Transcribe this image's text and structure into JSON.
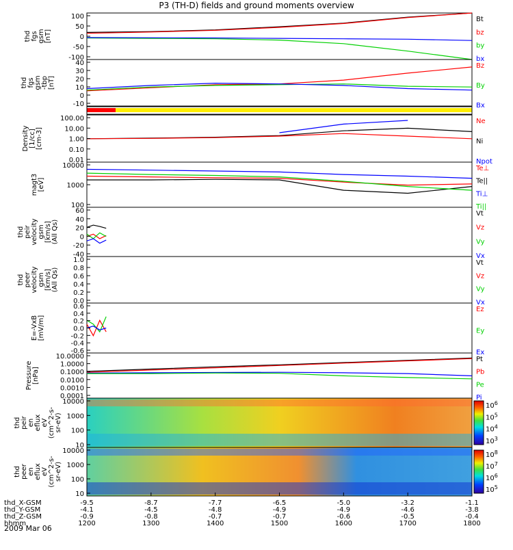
{
  "title": "P3 (TH-D) fields and ground moments overview",
  "date_label": "2009 Mar 06",
  "colors": {
    "black": "#000000",
    "red": "#ff0000",
    "green": "#00d000",
    "blue": "#0000ff"
  },
  "chart_data": [
    {
      "type": "line",
      "id": "fgs_gsm",
      "ylabel": [
        "thd",
        "fgs",
        "gsm",
        "[nT]"
      ],
      "ylim": [
        -100,
        100
      ],
      "yticks": [
        "100",
        "50",
        "0",
        "-50",
        "-100"
      ],
      "legend": [
        {
          "name": "Bt",
          "color": "black"
        },
        {
          "name": "bz",
          "color": "red"
        },
        {
          "name": "by",
          "color": "green"
        },
        {
          "name": "bx",
          "color": "blue"
        }
      ],
      "x": [
        1200,
        1300,
        1400,
        1500,
        1600,
        1700,
        1800
      ],
      "series": [
        {
          "name": "Bt",
          "color": "black",
          "values": [
            18,
            22,
            30,
            45,
            62,
            90,
            130
          ]
        },
        {
          "name": "bz",
          "color": "red",
          "values": [
            14,
            20,
            28,
            42,
            60,
            88,
            125
          ]
        },
        {
          "name": "by",
          "color": "green",
          "values": [
            -8,
            -10,
            -12,
            -18,
            -35,
            -70,
            -110
          ]
        },
        {
          "name": "bx",
          "color": "blue",
          "values": [
            -6,
            -7,
            -8,
            -10,
            -12,
            -14,
            -20
          ]
        }
      ]
    },
    {
      "type": "line",
      "id": "fgs_gse_tbp",
      "ylabel": [
        "thd",
        "fgs",
        "gsm",
        "-tbp",
        "[nT]"
      ],
      "ylim": [
        -15,
        40
      ],
      "yticks": [
        "40",
        "30",
        "20",
        "10",
        "0",
        "-10"
      ],
      "legend": [
        {
          "name": "Bz",
          "color": "red"
        },
        {
          "name": "By",
          "color": "green"
        },
        {
          "name": "Bx",
          "color": "blue"
        }
      ],
      "x": [
        1200,
        1300,
        1400,
        1500,
        1600,
        1700,
        1800
      ],
      "series": [
        {
          "name": "Bz",
          "color": "red",
          "values": [
            2,
            6,
            10,
            11,
            16,
            25,
            33
          ]
        },
        {
          "name": "By",
          "color": "green",
          "values": [
            3,
            7,
            9,
            10,
            11,
            8,
            7
          ]
        },
        {
          "name": "Bx",
          "color": "blue",
          "values": [
            5,
            9,
            12,
            11,
            9,
            5,
            3
          ]
        }
      ]
    },
    {
      "type": "bar",
      "id": "status_bar",
      "ylabel": []
    },
    {
      "type": "line",
      "id": "density",
      "log": true,
      "ylabel": [
        "Density",
        "[1/cc]",
        "[cm-3]"
      ],
      "ylim": [
        0.001,
        100
      ],
      "yticks": [
        "100.00",
        "10.00",
        "1.00",
        "0.10",
        "0.01"
      ],
      "legend": [
        {
          "name": "Ne",
          "color": "red"
        },
        {
          "name": "Ni",
          "color": "black"
        },
        {
          "name": "Npot",
          "color": "blue"
        }
      ],
      "x": [
        1200,
        1300,
        1400,
        1500,
        1600,
        1700,
        1800
      ],
      "series": [
        {
          "name": "Ni",
          "color": "black",
          "values": [
            0.3,
            0.35,
            0.45,
            0.7,
            2.5,
            5,
            2
          ]
        },
        {
          "name": "Ne",
          "color": "red",
          "values": [
            0.3,
            0.33,
            0.4,
            0.6,
            1.2,
            0.6,
            0.3
          ]
        },
        {
          "name": "Npot",
          "color": "blue",
          "values": [
            null,
            null,
            null,
            1.5,
            15,
            40,
            null
          ]
        }
      ]
    },
    {
      "type": "line",
      "id": "temperature",
      "log": true,
      "ylabel": [
        "magt3",
        "[eV]"
      ],
      "ylim": [
        40,
        10000
      ],
      "yticks": [
        "10000",
        "1000",
        "100"
      ],
      "legend": [
        {
          "name": "Te⊥",
          "color": "red"
        },
        {
          "name": "Te||",
          "color": "black"
        },
        {
          "name": "Ti⊥",
          "color": "blue"
        },
        {
          "name": "Ti||",
          "color": "green"
        }
      ],
      "x": [
        1200,
        1300,
        1400,
        1500,
        1600,
        1700,
        1800
      ],
      "series": [
        {
          "name": "Ti⊥",
          "color": "blue",
          "values": [
            5000,
            4500,
            4000,
            3500,
            2500,
            2000,
            1500
          ]
        },
        {
          "name": "Te⊥",
          "color": "red",
          "values": [
            2000,
            1800,
            1600,
            1500,
            900,
            600,
            700
          ]
        },
        {
          "name": "Te||",
          "color": "black",
          "values": [
            1200,
            1200,
            1300,
            1200,
            300,
            200,
            500
          ]
        },
        {
          "name": "Ti||",
          "color": "green",
          "values": [
            3000,
            2500,
            2200,
            1800,
            1000,
            500,
            300
          ]
        }
      ]
    },
    {
      "type": "line",
      "id": "peir_velocity",
      "ylabel": [
        "thd",
        "peir",
        "velocity",
        "gsm",
        "[km/s]",
        "(All Qs)"
      ],
      "ylim": [
        -40,
        60
      ],
      "yticks": [
        "60",
        "40",
        "20",
        "0",
        "-20",
        "-40"
      ],
      "legend": [
        {
          "name": "Vt",
          "color": "black"
        },
        {
          "name": "Vz",
          "color": "red"
        },
        {
          "name": "Vy",
          "color": "green"
        },
        {
          "name": "Vx",
          "color": "blue"
        }
      ],
      "x": [
        1200,
        1210,
        1220,
        1230
      ],
      "series": [
        {
          "name": "Vt",
          "color": "black",
          "values": [
            20,
            25,
            22,
            18
          ]
        },
        {
          "name": "Vz",
          "color": "red",
          "values": [
            0,
            5,
            -5,
            2
          ]
        },
        {
          "name": "Vy",
          "color": "green",
          "values": [
            5,
            -5,
            8,
            0
          ]
        },
        {
          "name": "Vx",
          "color": "blue",
          "values": [
            -10,
            -5,
            -15,
            -8
          ]
        }
      ]
    },
    {
      "type": "line",
      "id": "peer_velocity",
      "ylabel": [
        "thd",
        "peer",
        "velocity",
        "gsm",
        "[km/s]",
        "(All Qs)"
      ],
      "ylim": [
        0,
        1
      ],
      "yticks": [
        "1.0",
        "0.8",
        "0.6",
        "0.4",
        "0.2",
        "0.0"
      ],
      "legend": [
        {
          "name": "Vt",
          "color": "black"
        },
        {
          "name": "Vz",
          "color": "red"
        },
        {
          "name": "Vy",
          "color": "green"
        },
        {
          "name": "Vx",
          "color": "blue"
        }
      ],
      "series": []
    },
    {
      "type": "line",
      "id": "efield",
      "ylabel": [
        "E=-VxB",
        "[mV/m]"
      ],
      "ylim": [
        -0.6,
        0.6
      ],
      "yticks": [
        "0.6",
        "0.4",
        "0.2",
        "0.0",
        "-0.2",
        "-0.4",
        "-0.6"
      ],
      "legend": [
        {
          "name": "Ez",
          "color": "red"
        },
        {
          "name": "Ey",
          "color": "green"
        },
        {
          "name": "Ex",
          "color": "blue"
        }
      ],
      "x": [
        1200,
        1210,
        1220,
        1230
      ],
      "series": [
        {
          "name": "Ez",
          "color": "red",
          "values": [
            0.1,
            -0.2,
            0.2,
            -0.1
          ]
        },
        {
          "name": "Ey",
          "color": "green",
          "values": [
            0.2,
            0.1,
            -0.1,
            0.3
          ]
        },
        {
          "name": "Ex",
          "color": "blue",
          "values": [
            0,
            0.05,
            -0.05,
            0
          ]
        }
      ]
    },
    {
      "type": "line",
      "id": "pressure",
      "log": true,
      "ylabel": [
        "Pressure",
        "[nPa]"
      ],
      "ylim": [
        0.0001,
        30
      ],
      "yticks": [
        "10.0000",
        "1.0000",
        "0.1000",
        "0.0100",
        "0.0010",
        "0.0001"
      ],
      "legend": [
        {
          "name": "Pt",
          "color": "black"
        },
        {
          "name": "Pb",
          "color": "red"
        },
        {
          "name": "Pe",
          "color": "green"
        },
        {
          "name": "Pi",
          "color": "blue"
        }
      ],
      "x": [
        1200,
        1300,
        1400,
        1500,
        1600,
        1700,
        1800
      ],
      "series": [
        {
          "name": "Pt",
          "color": "black",
          "values": [
            0.2,
            0.4,
            0.8,
            1.5,
            3,
            6,
            12
          ]
        },
        {
          "name": "Pb",
          "color": "red",
          "values": [
            0.15,
            0.3,
            0.6,
            1.2,
            2.5,
            5,
            10
          ]
        },
        {
          "name": "Pi",
          "color": "blue",
          "values": [
            0.12,
            0.13,
            0.14,
            0.15,
            0.13,
            0.1,
            0.05
          ]
        },
        {
          "name": "Pe",
          "color": "green",
          "values": [
            0.1,
            0.1,
            0.12,
            0.11,
            0.05,
            0.03,
            0.02
          ]
        }
      ]
    },
    {
      "type": "heatmap",
      "id": "peir_spec",
      "ylabel": [
        "thd",
        "peir",
        "en",
        "eflux",
        "eV",
        "(cm^2-s-",
        "sr-eV)"
      ],
      "yticks": [
        "10000",
        "1000",
        "100",
        "10"
      ],
      "colorbar_ticks": [
        "10^6",
        "10^5",
        "10^4",
        "10^3"
      ]
    },
    {
      "type": "heatmap",
      "id": "peer_spec",
      "ylabel": [
        "thd",
        "peer",
        "en",
        "eflux",
        "eV",
        "(cm^2-s-",
        "sr-eV)"
      ],
      "yticks": [
        "10000",
        "1000",
        "100",
        "10"
      ],
      "colorbar_ticks": [
        "10^8",
        "10^7",
        "10^6",
        "10^5"
      ]
    }
  ],
  "ephemeris": {
    "rows": [
      {
        "label": "thd_X-GSM",
        "values": [
          "-9.5",
          "-8.7",
          "-7.7",
          "-6.5",
          "-5.0",
          "-3.2",
          "-1.1"
        ]
      },
      {
        "label": "thd_Y-GSM",
        "values": [
          "-4.1",
          "-4.5",
          "-4.8",
          "-4.9",
          "-4.9",
          "-4.6",
          "-3.8"
        ]
      },
      {
        "label": "thd_Z-GSM",
        "values": [
          "-0.9",
          "-0.8",
          "-0.7",
          "-0.7",
          "-0.6",
          "-0.5",
          "-0.4"
        ]
      },
      {
        "label": "hhmm",
        "values": [
          "1200",
          "1300",
          "1400",
          "1500",
          "1600",
          "1700",
          "1800"
        ]
      }
    ]
  }
}
